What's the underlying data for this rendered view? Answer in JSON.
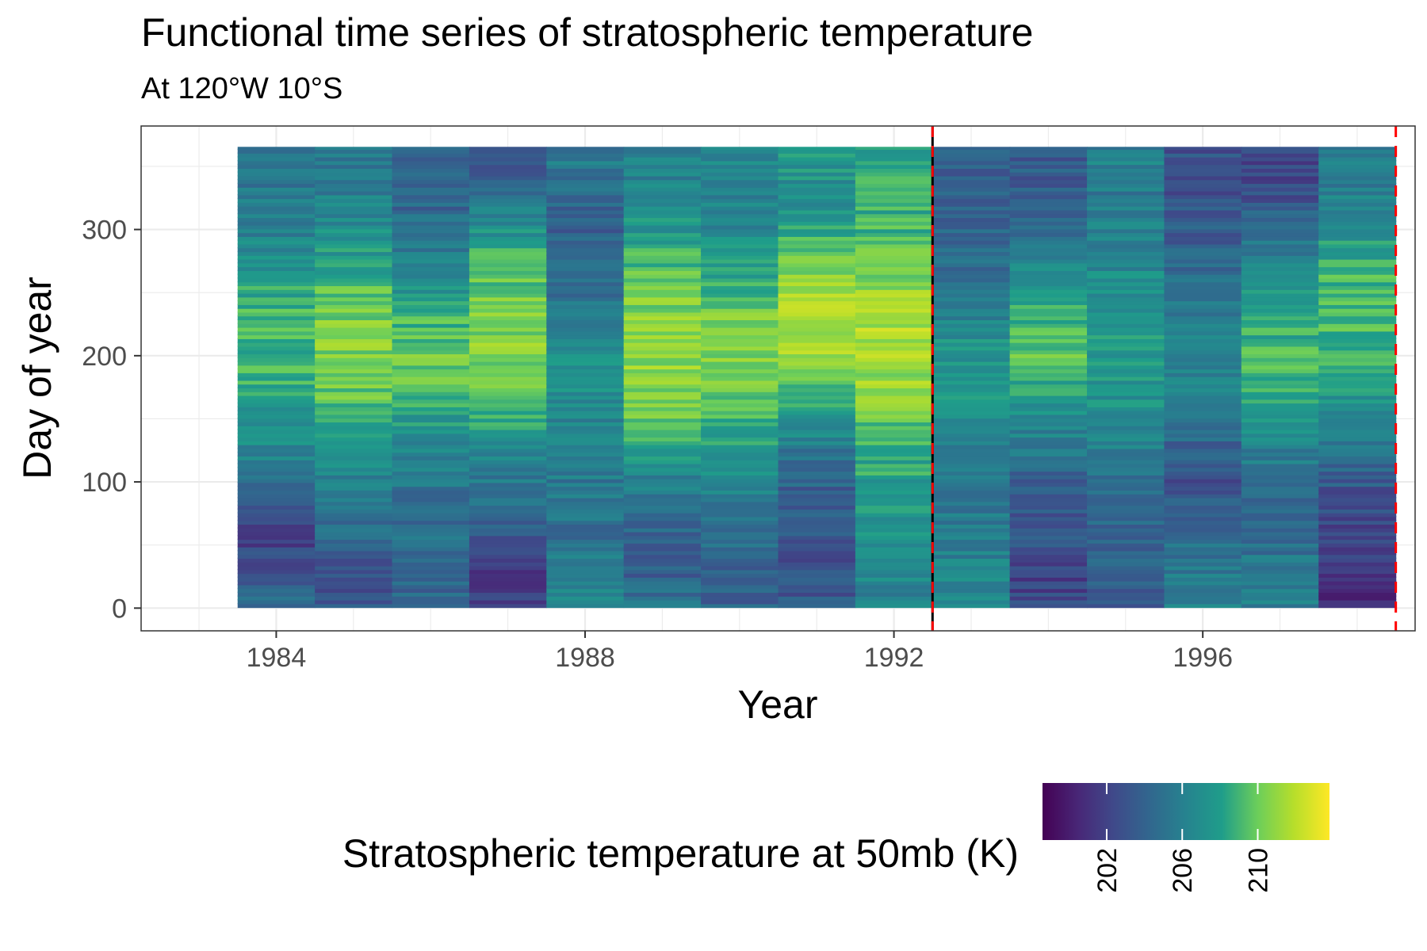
{
  "chart_data": {
    "type": "heatmap",
    "title": "Functional time series of stratospheric temperature",
    "subtitle": "At 120°W 10°S",
    "xlabel": "Year",
    "ylabel": "Day of year",
    "x_ticks": [
      1984,
      1988,
      1992,
      1996
    ],
    "y_ticks": [
      0,
      100,
      200,
      300
    ],
    "xlim": [
      1982.25,
      1998.75
    ],
    "ylim": [
      -18,
      382
    ],
    "years": [
      1984,
      1985,
      1986,
      1987,
      1988,
      1989,
      1990,
      1991,
      1992,
      1993,
      1994,
      1995,
      1996,
      1997,
      1998
    ],
    "day_range": [
      1,
      365
    ],
    "day_bands": [
      0,
      25,
      50,
      75,
      100,
      125,
      150,
      175,
      200,
      225,
      250,
      275,
      300,
      325,
      350,
      365
    ],
    "band_values": [
      [
        205.0,
        203.5,
        202.0,
        203.0,
        205.0,
        206.5,
        207.5,
        208.5,
        209.0,
        209.5,
        208.5,
        207.0,
        206.0,
        205.5,
        205.0
      ],
      [
        203.5,
        203.0,
        204.0,
        205.0,
        206.0,
        207.5,
        209.0,
        210.0,
        210.5,
        210.5,
        209.5,
        208.0,
        207.0,
        206.0,
        205.5
      ],
      [
        204.0,
        204.5,
        205.0,
        204.5,
        205.5,
        206.5,
        208.0,
        209.5,
        210.0,
        209.0,
        207.5,
        206.0,
        205.0,
        204.0,
        204.0
      ],
      [
        201.5,
        201.5,
        203.0,
        204.5,
        205.5,
        207.0,
        208.5,
        210.0,
        210.5,
        210.5,
        210.0,
        209.0,
        207.0,
        205.0,
        203.0
      ],
      [
        206.0,
        206.0,
        205.0,
        205.0,
        205.5,
        206.0,
        206.5,
        207.0,
        207.0,
        206.0,
        205.0,
        204.5,
        204.0,
        204.5,
        205.5
      ],
      [
        205.0,
        204.0,
        204.0,
        205.0,
        206.0,
        208.0,
        210.0,
        210.5,
        211.0,
        210.5,
        210.5,
        209.0,
        207.5,
        206.5,
        206.0
      ],
      [
        204.0,
        204.0,
        204.5,
        205.5,
        206.5,
        207.5,
        209.0,
        210.0,
        210.5,
        210.5,
        209.0,
        207.5,
        206.5,
        206.0,
        206.5
      ],
      [
        203.5,
        203.0,
        203.0,
        203.5,
        204.0,
        205.5,
        207.5,
        209.5,
        211.0,
        212.0,
        211.5,
        210.0,
        208.0,
        207.0,
        207.5
      ],
      [
        206.0,
        206.5,
        207.0,
        207.5,
        208.0,
        209.0,
        210.0,
        211.0,
        211.5,
        211.5,
        211.0,
        210.0,
        209.0,
        208.5,
        208.5
      ],
      [
        206.5,
        206.5,
        206.0,
        205.5,
        205.5,
        206.0,
        207.0,
        207.5,
        207.5,
        206.5,
        205.5,
        204.5,
        204.0,
        203.5,
        204.0
      ],
      [
        202.5,
        202.0,
        203.0,
        203.0,
        204.0,
        205.5,
        207.0,
        208.5,
        209.5,
        209.0,
        208.0,
        206.0,
        204.5,
        203.5,
        203.5
      ],
      [
        203.5,
        203.5,
        204.0,
        204.5,
        205.0,
        206.0,
        207.0,
        207.5,
        208.0,
        207.5,
        207.0,
        206.5,
        206.0,
        205.5,
        206.0
      ],
      [
        206.0,
        205.5,
        205.0,
        204.0,
        203.0,
        204.0,
        205.0,
        206.0,
        206.0,
        205.5,
        205.0,
        204.0,
        203.5,
        203.0,
        203.0
      ],
      [
        206.0,
        205.5,
        205.0,
        204.5,
        205.0,
        206.0,
        207.5,
        208.5,
        209.0,
        208.5,
        207.5,
        206.0,
        204.5,
        203.0,
        202.0
      ],
      [
        200.5,
        201.0,
        202.0,
        202.5,
        203.5,
        205.0,
        206.5,
        208.0,
        209.0,
        209.5,
        209.5,
        208.5,
        207.0,
        206.0,
        205.5
      ]
    ],
    "vlines": [
      {
        "x": 1992.5,
        "color": "#000000",
        "style": "solid"
      },
      {
        "x": 1992.5,
        "color": "#ff0000",
        "style": "dashed"
      },
      {
        "x": 1998.5,
        "color": "#ff0000",
        "style": "dashed"
      }
    ],
    "legend": {
      "title": "Stratospheric temperature at 50mb (K)",
      "position": "bottom",
      "ticks": [
        202,
        206,
        210
      ],
      "range": [
        198.6,
        213.8
      ],
      "colormap": "viridis"
    },
    "grid": true
  }
}
